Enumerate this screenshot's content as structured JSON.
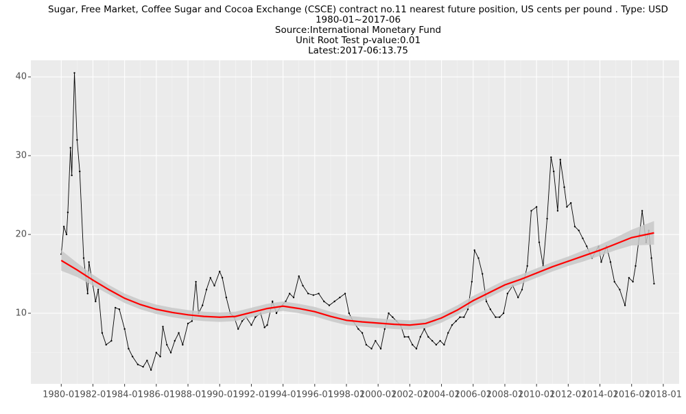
{
  "chart_data": {
    "type": "line",
    "title": "Sugar, Free Market, Coffee Sugar and Cocoa Exchange (CSCE) contract no.11 nearest future position, US cents per pound . Type: USD",
    "subtitle": "1980-01~2017-06",
    "source": "Source:International Monetary Fund",
    "annotation": "Unit Root Test p-value:0.01",
    "latest": "Latest:2017-06:13.75",
    "xlim": [
      "1978-02",
      "2019-01"
    ],
    "xticks": [
      "1980-01",
      "1982-01",
      "1984-01",
      "1986-01",
      "1988-01",
      "1990-01",
      "1992-01",
      "1994-01",
      "1996-01",
      "1998-01",
      "2000-01",
      "2002-01",
      "2004-01",
      "2006-01",
      "2008-01",
      "2010-01",
      "2012-01",
      "2014-01",
      "2016-01",
      "2018-01"
    ],
    "ylim": [
      1.04,
      42.1
    ],
    "yticks": [
      10,
      20,
      30,
      40
    ],
    "grid": true,
    "series": [
      {
        "color": "#000000",
        "x": [
          "1980-01",
          "1980-03",
          "1980-05",
          "1980-06",
          "1980-08",
          "1980-09",
          "1980-11",
          "1981-01",
          "1981-03",
          "1981-06",
          "1981-09",
          "1981-10",
          "1982-03",
          "1982-05",
          "1982-08",
          "1982-11",
          "1983-03",
          "1983-06",
          "1983-09",
          "1984-01",
          "1984-04",
          "1984-07",
          "1984-11",
          "1985-03",
          "1985-06",
          "1985-09",
          "1986-01",
          "1986-04",
          "1986-06",
          "1986-09",
          "1986-12",
          "1987-03",
          "1987-06",
          "1987-09",
          "1988-01",
          "1988-04",
          "1988-07",
          "1988-09",
          "1988-12",
          "1989-03",
          "1989-06",
          "1989-09",
          "1990-01",
          "1990-03",
          "1990-06",
          "1990-09",
          "1990-12",
          "1991-03",
          "1991-06",
          "1991-09",
          "1992-01",
          "1992-04",
          "1992-08",
          "1992-11",
          "1993-01",
          "1993-05",
          "1993-08",
          "1993-11",
          "1994-03",
          "1994-06",
          "1994-09",
          "1995-01",
          "1995-04",
          "1995-08",
          "1995-12",
          "1996-04",
          "1996-08",
          "1996-12",
          "1997-04",
          "1997-08",
          "1997-12",
          "1998-03",
          "1998-06",
          "1998-10",
          "1999-01",
          "1999-04",
          "1999-08",
          "1999-11",
          "2000-03",
          "2000-06",
          "2000-09",
          "2000-12",
          "2001-03",
          "2001-06",
          "2001-09",
          "2001-12",
          "2002-03",
          "2002-06",
          "2002-09",
          "2002-12",
          "2003-03",
          "2003-06",
          "2003-09",
          "2003-12",
          "2004-03",
          "2004-06",
          "2004-09",
          "2004-12",
          "2005-03",
          "2005-06",
          "2005-09",
          "2005-12",
          "2006-02",
          "2006-05",
          "2006-08",
          "2006-11",
          "2007-02",
          "2007-06",
          "2007-09",
          "2007-12",
          "2008-03",
          "2008-07",
          "2008-11",
          "2009-02",
          "2009-06",
          "2009-09",
          "2010-01",
          "2010-03",
          "2010-06",
          "2010-09",
          "2010-12",
          "2011-02",
          "2011-05",
          "2011-07",
          "2011-10",
          "2011-12",
          "2012-03",
          "2012-06",
          "2012-09",
          "2012-12",
          "2013-03",
          "2013-07",
          "2013-12",
          "2014-02",
          "2014-06",
          "2014-09",
          "2014-12",
          "2015-04",
          "2015-08",
          "2015-11",
          "2016-02",
          "2016-04",
          "2016-07",
          "2016-09",
          "2016-12",
          "2017-02",
          "2017-04",
          "2017-06"
        ],
        "values": [
          17.5,
          21,
          20,
          22.8,
          31,
          27.5,
          40.5,
          32,
          28,
          17,
          12.5,
          16.5,
          11.5,
          13,
          7.5,
          6,
          6.5,
          10.7,
          10.5,
          8,
          5.5,
          4.5,
          3.5,
          3.2,
          4,
          2.8,
          5,
          4.5,
          8.3,
          6,
          5,
          6.5,
          7.5,
          6,
          8.7,
          9,
          14,
          10,
          11,
          13,
          14.5,
          13.5,
          15.3,
          14.5,
          12,
          10,
          9.5,
          8,
          9,
          9.5,
          8.5,
          9.5,
          10,
          8.2,
          8.5,
          11.5,
          10,
          10.8,
          11.5,
          12.5,
          12,
          14.7,
          13.5,
          12.5,
          12.3,
          12.5,
          11.5,
          11,
          11.5,
          12,
          12.5,
          10,
          9,
          8,
          7.5,
          6,
          5.5,
          6.5,
          5.5,
          8,
          10,
          9.5,
          9,
          8.5,
          7,
          7,
          6,
          5.5,
          7,
          8,
          7,
          6.5,
          6,
          6.5,
          6,
          7.5,
          8.5,
          9,
          9.5,
          9.5,
          10.5,
          14,
          18,
          17,
          15,
          11.5,
          10.5,
          9.5,
          9.5,
          10,
          12.5,
          13.5,
          12,
          13,
          16,
          23,
          23.5,
          19,
          16,
          22,
          29.8,
          28,
          23,
          29.5,
          26,
          23.5,
          24,
          21,
          20.5,
          19.5,
          18.5,
          17,
          18.5,
          16.5,
          18.5,
          16.5,
          14,
          13,
          11,
          14.5,
          14,
          16,
          20,
          23,
          19,
          20.5,
          17,
          13.75
        ]
      },
      {
        "color": "#ff0000",
        "band_color": "#c8c8c8",
        "x": [
          "1980-01",
          "1981-01",
          "1982-01",
          "1983-01",
          "1984-01",
          "1985-01",
          "1986-01",
          "1987-01",
          "1988-01",
          "1989-01",
          "1990-01",
          "1991-01",
          "1992-01",
          "1993-01",
          "1994-01",
          "1995-01",
          "1996-01",
          "1997-01",
          "1998-01",
          "1999-01",
          "2000-01",
          "2001-01",
          "2002-01",
          "2003-01",
          "2004-01",
          "2005-01",
          "2006-01",
          "2007-01",
          "2008-01",
          "2009-01",
          "2010-01",
          "2011-01",
          "2012-01",
          "2013-01",
          "2014-01",
          "2015-01",
          "2016-01",
          "2017-06"
        ],
        "values": [
          16.7,
          15.5,
          14.2,
          13,
          11.9,
          11.1,
          10.5,
          10.1,
          9.8,
          9.6,
          9.5,
          9.6,
          10.1,
          10.6,
          10.9,
          10.6,
          10.2,
          9.6,
          9.1,
          8.9,
          8.75,
          8.6,
          8.5,
          8.7,
          9.4,
          10.4,
          11.6,
          12.6,
          13.6,
          14.3,
          15.1,
          15.9,
          16.6,
          17.3,
          18,
          18.8,
          19.6,
          20.2
        ],
        "lower": [
          15.4,
          14.6,
          13.5,
          12.4,
          11.3,
          10.5,
          9.9,
          9.5,
          9.2,
          9,
          8.9,
          9,
          9.5,
          10,
          10.3,
          10,
          9.6,
          9,
          8.5,
          8.3,
          8.15,
          8,
          7.9,
          8.1,
          8.8,
          9.8,
          11,
          12,
          13,
          13.7,
          14.5,
          15.3,
          16,
          16.6,
          17.3,
          18,
          18.6,
          18.7
        ],
        "upper": [
          18,
          16.4,
          14.9,
          13.6,
          12.5,
          11.7,
          11.1,
          10.7,
          10.4,
          10.2,
          10.1,
          10.2,
          10.7,
          11.2,
          11.5,
          11.2,
          10.8,
          10.2,
          9.7,
          9.5,
          9.35,
          9.2,
          9.1,
          9.3,
          10,
          11,
          12.2,
          13.2,
          14.2,
          14.9,
          15.7,
          16.5,
          17.2,
          18,
          18.7,
          19.6,
          20.6,
          21.7
        ]
      }
    ]
  }
}
